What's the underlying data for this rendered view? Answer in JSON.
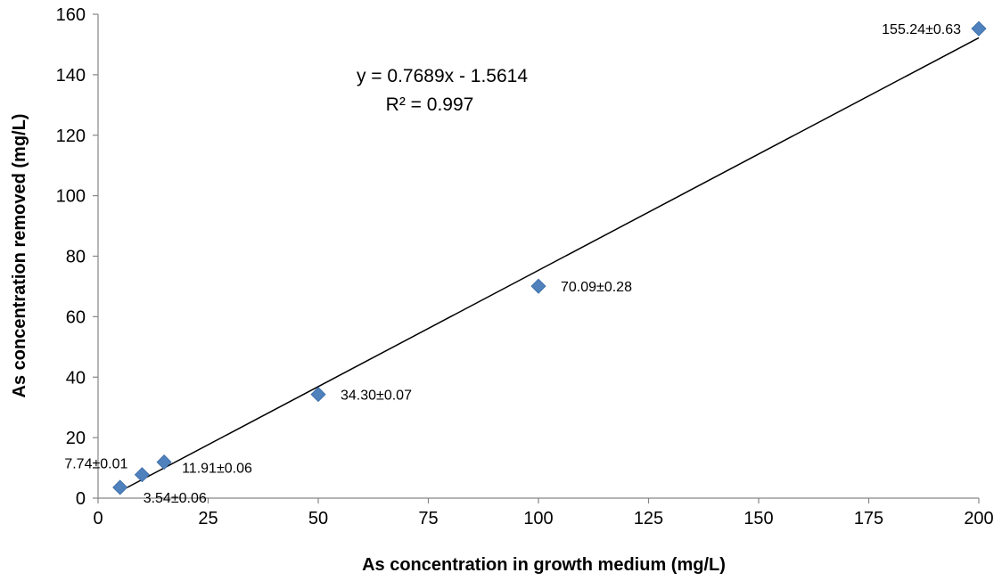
{
  "chart_data": {
    "type": "scatter",
    "title": "",
    "xlabel": "As concentration in growth medium (mg/L)",
    "ylabel": "As concentration removed (mg/L)",
    "xlim": [
      0,
      200
    ],
    "ylim": [
      0,
      160
    ],
    "x_ticks": [
      0,
      25,
      50,
      75,
      100,
      125,
      150,
      175,
      200
    ],
    "y_ticks": [
      0,
      20,
      40,
      60,
      80,
      100,
      120,
      140,
      160
    ],
    "grid": false,
    "legend": "none",
    "marker": "diamond",
    "marker_color": "#4F81BD",
    "series": [
      {
        "x": [
          5,
          10,
          15,
          50,
          100,
          200
        ],
        "y": [
          3.54,
          7.74,
          11.91,
          34.3,
          70.09,
          155.24
        ],
        "labels": [
          "3.54±0.06",
          "7.74±0.01",
          "11.91±0.06",
          "34.30±0.07",
          "70.09±0.28",
          "155.24±0.63"
        ]
      }
    ],
    "trendline": {
      "type": "linear",
      "slope": 0.7689,
      "intercept": -1.5614,
      "x_range": [
        5,
        200
      ],
      "color": "#000000",
      "equation": "y = 0.7689x - 1.5614",
      "r_squared": "R² = 0.997"
    }
  }
}
